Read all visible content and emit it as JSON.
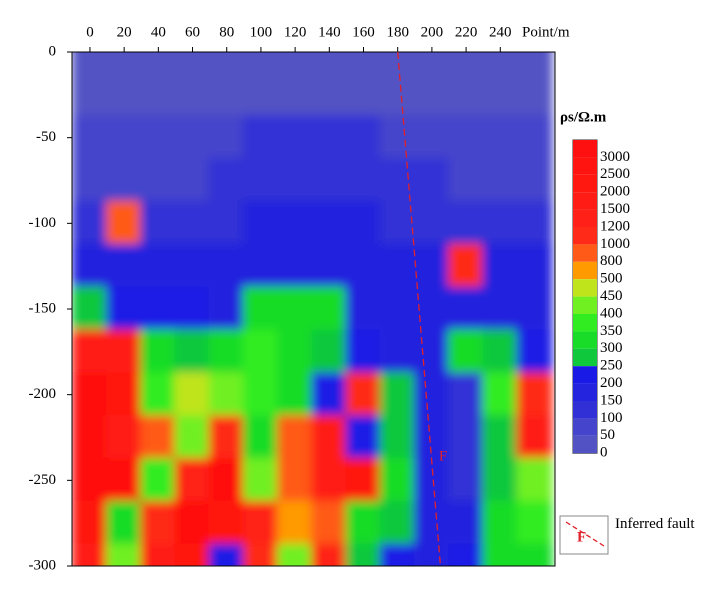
{
  "chart_data": {
    "type": "contour",
    "xlabel": "Point/m",
    "xlim": [
      -10.5,
      272
    ],
    "ylim": [
      -300,
      0
    ],
    "xticks": [
      0,
      20,
      40,
      60,
      80,
      100,
      120,
      140,
      160,
      180,
      200,
      220,
      240
    ],
    "yticks": [
      0,
      -50,
      -100,
      -150,
      -200,
      -250,
      -300
    ],
    "x": [
      0,
      20,
      40,
      60,
      80,
      100,
      120,
      140,
      160,
      180,
      200,
      220,
      240,
      260
    ],
    "y": [
      0,
      -25,
      -50,
      -75,
      -100,
      -125,
      -150,
      -175,
      -200,
      -225,
      -250,
      -275,
      -300
    ],
    "z": [
      [
        30,
        30,
        30,
        30,
        30,
        30,
        30,
        30,
        30,
        30,
        30,
        30,
        30,
        30
      ],
      [
        40,
        40,
        40,
        40,
        40,
        40,
        40,
        40,
        40,
        40,
        40,
        40,
        40,
        40
      ],
      [
        50,
        50,
        50,
        50,
        50,
        100,
        100,
        100,
        100,
        50,
        50,
        50,
        50,
        50
      ],
      [
        60,
        60,
        60,
        60,
        120,
        120,
        120,
        120,
        120,
        100,
        100,
        60,
        60,
        60
      ],
      [
        120,
        800,
        120,
        100,
        100,
        150,
        150,
        150,
        150,
        120,
        120,
        120,
        120,
        120
      ],
      [
        150,
        150,
        150,
        150,
        150,
        150,
        150,
        150,
        150,
        150,
        150,
        1000,
        150,
        150
      ],
      [
        250,
        200,
        200,
        200,
        170,
        300,
        300,
        300,
        170,
        150,
        150,
        150,
        150,
        150
      ],
      [
        1500,
        1500,
        300,
        250,
        300,
        350,
        300,
        250,
        200,
        150,
        150,
        300,
        250,
        200
      ],
      [
        3000,
        2000,
        350,
        450,
        400,
        350,
        300,
        200,
        1000,
        250,
        150,
        100,
        350,
        1000
      ],
      [
        3000,
        1500,
        800,
        400,
        1000,
        300,
        800,
        1500,
        200,
        250,
        150,
        100,
        250,
        1500
      ],
      [
        3000,
        3000,
        350,
        1200,
        3000,
        400,
        800,
        1500,
        2000,
        300,
        150,
        100,
        250,
        400
      ],
      [
        2000,
        300,
        1000,
        3000,
        2500,
        1200,
        500,
        800,
        300,
        250,
        150,
        150,
        300,
        350
      ],
      [
        1500,
        400,
        1500,
        2500,
        200,
        1000,
        400,
        1200,
        250,
        200,
        150,
        200,
        300,
        300
      ]
    ],
    "colorbar": {
      "title": "ρs/Ω.m",
      "levels": [
        0,
        50,
        100,
        150,
        200,
        250,
        300,
        350,
        400,
        450,
        500,
        800,
        1000,
        1200,
        1500,
        2000,
        2500,
        3000
      ],
      "colors": [
        "#5252c4",
        "#4444cc",
        "#3030d6",
        "#2424de",
        "#1a1ae6",
        "#10c83c",
        "#18dc28",
        "#30ec20",
        "#70f020",
        "#c0e41c",
        "#ff9a00",
        "#ff5a18",
        "#ff2a18",
        "#ff2018",
        "#ff1c14",
        "#ff1810",
        "#ff1410",
        "#ff1010"
      ]
    },
    "fault": {
      "x": [
        180,
        205
      ],
      "y": [
        0,
        -300
      ],
      "label": "F",
      "legend": "Inferred fault",
      "color": "#e0202a"
    }
  }
}
